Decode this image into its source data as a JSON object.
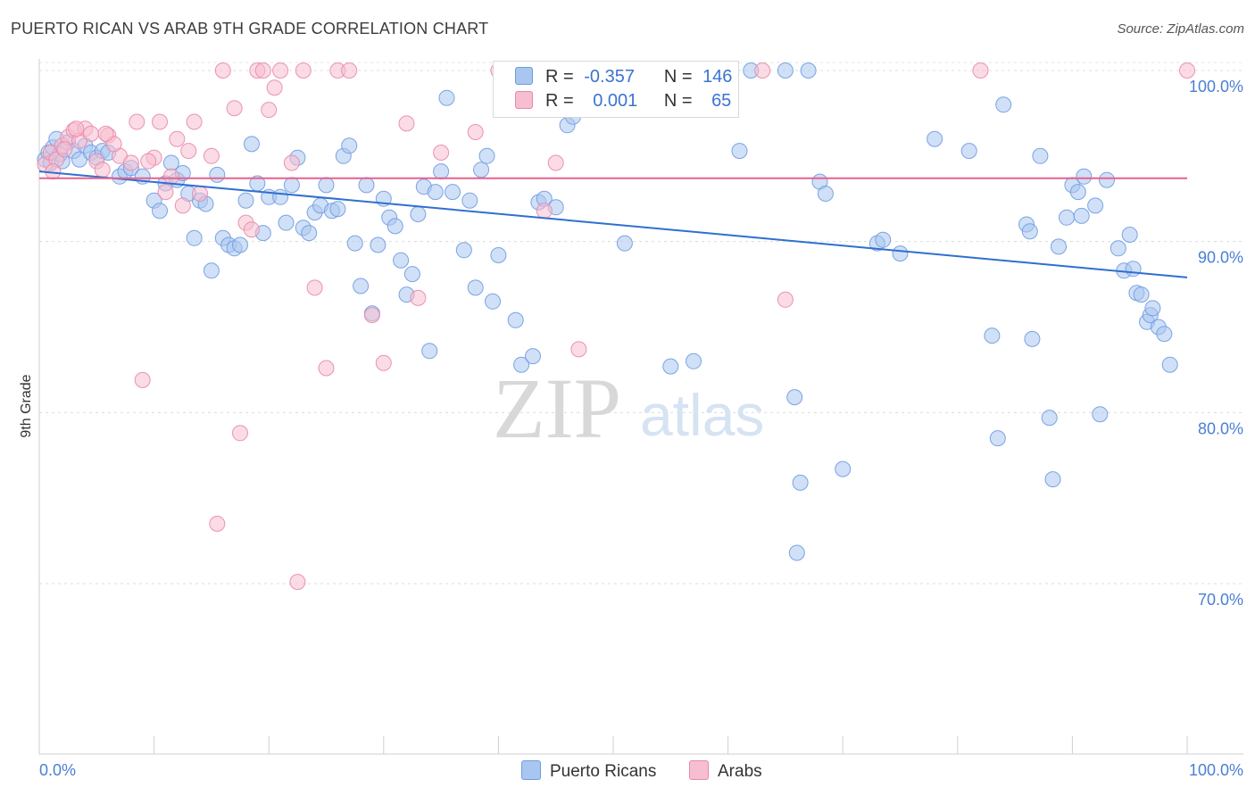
{
  "title": "PUERTO RICAN VS ARAB 9TH GRADE CORRELATION CHART",
  "source": "Source: ZipAtlas.com",
  "watermark": {
    "zip": "ZIP",
    "atlas": "atlas"
  },
  "legend": {
    "rows": [
      {
        "r_label": "R =",
        "r_value": "-0.357",
        "n_label": "N =",
        "n_value": "146",
        "color": "#a9c6f0",
        "border": "#6f9be0"
      },
      {
        "r_label": "R =",
        "r_value": "0.001",
        "n_label": "N =",
        "n_value": "65",
        "color": "#f7bdd0",
        "border": "#e889a8"
      }
    ]
  },
  "bottom_legend": [
    {
      "label": "Puerto Ricans",
      "color": "#a9c6f0",
      "border": "#6f9be0"
    },
    {
      "label": "Arabs",
      "color": "#f7bdd0",
      "border": "#e889a8"
    }
  ],
  "chart_data": {
    "type": "scatter",
    "xlabel": "",
    "ylabel": "9th Grade",
    "xlim": [
      0,
      100
    ],
    "ylim": [
      60,
      102.5
    ],
    "x_tick_labels": [
      {
        "value": 0,
        "label": "0.0%"
      },
      {
        "value": 100,
        "label": "100.0%"
      }
    ],
    "y_tick_labels": [
      {
        "value": 100,
        "label": "100.0%"
      },
      {
        "value": 90,
        "label": "90.0%"
      },
      {
        "value": 80,
        "label": "80.0%"
      },
      {
        "value": 70,
        "label": "70.0%"
      }
    ],
    "grid": true,
    "series": [
      {
        "name": "Puerto Ricans",
        "color": "#a9c6f0",
        "stroke": "#6f9be0",
        "trend": {
          "x": [
            0,
            100
          ],
          "y": [
            94.1,
            87.9
          ],
          "color": "#2f6fd0"
        },
        "points": [
          [
            0.5,
            94.8
          ],
          [
            0.8,
            95.2
          ],
          [
            1,
            94.6
          ],
          [
            1.2,
            95.5
          ],
          [
            1.5,
            96
          ],
          [
            1.8,
            95.1
          ],
          [
            2,
            94.7
          ],
          [
            2.5,
            95.8
          ],
          [
            3,
            95.3
          ],
          [
            3.5,
            94.8
          ],
          [
            4,
            95.6
          ],
          [
            4.5,
            95.2
          ],
          [
            5,
            94.9
          ],
          [
            5.5,
            95.3
          ],
          [
            6,
            95.2
          ],
          [
            7,
            93.8
          ],
          [
            7.5,
            94.1
          ],
          [
            8,
            94.3
          ],
          [
            9,
            93.8
          ],
          [
            10,
            92.4
          ],
          [
            10.5,
            91.8
          ],
          [
            11,
            93.4
          ],
          [
            11.5,
            94.6
          ],
          [
            12,
            93.6
          ],
          [
            12.5,
            94
          ],
          [
            13,
            92.8
          ],
          [
            13.5,
            90.2
          ],
          [
            14,
            92.4
          ],
          [
            14.5,
            92.2
          ],
          [
            15,
            88.3
          ],
          [
            15.5,
            93.9
          ],
          [
            16,
            90.2
          ],
          [
            16.5,
            89.8
          ],
          [
            17,
            89.6
          ],
          [
            17.5,
            89.8
          ],
          [
            18,
            92.4
          ],
          [
            18.5,
            95.7
          ],
          [
            19,
            93.4
          ],
          [
            19.5,
            90.5
          ],
          [
            20,
            92.6
          ],
          [
            21,
            92.6
          ],
          [
            21.5,
            91.1
          ],
          [
            22,
            93.3
          ],
          [
            22.5,
            94.9
          ],
          [
            23,
            90.8
          ],
          [
            23.5,
            90.5
          ],
          [
            24,
            91.7
          ],
          [
            24.5,
            92.1
          ],
          [
            25,
            93.3
          ],
          [
            25.5,
            91.8
          ],
          [
            26,
            91.9
          ],
          [
            26.5,
            95
          ],
          [
            27,
            95.6
          ],
          [
            27.5,
            89.9
          ],
          [
            28,
            87.4
          ],
          [
            28.5,
            93.3
          ],
          [
            29,
            85.8
          ],
          [
            29.5,
            89.8
          ],
          [
            30,
            92.5
          ],
          [
            30.5,
            91.4
          ],
          [
            31,
            90.9
          ],
          [
            31.5,
            88.9
          ],
          [
            32,
            86.9
          ],
          [
            32.5,
            88.1
          ],
          [
            33,
            91.6
          ],
          [
            33.5,
            93.2
          ],
          [
            34,
            83.6
          ],
          [
            34.5,
            92.9
          ],
          [
            35,
            94.1
          ],
          [
            35.5,
            98.4
          ],
          [
            36,
            92.9
          ],
          [
            37,
            89.5
          ],
          [
            37.5,
            92.4
          ],
          [
            38,
            87.3
          ],
          [
            38.5,
            94.2
          ],
          [
            39,
            95
          ],
          [
            39.5,
            86.5
          ],
          [
            40,
            89.2
          ],
          [
            41.5,
            85.4
          ],
          [
            42,
            82.8
          ],
          [
            43,
            83.3
          ],
          [
            43.5,
            92.3
          ],
          [
            44,
            92.5
          ],
          [
            45,
            92
          ],
          [
            46,
            96.8
          ],
          [
            46.5,
            97.3
          ],
          [
            48,
            100
          ],
          [
            51,
            89.9
          ],
          [
            53,
            100
          ],
          [
            55,
            82.7
          ],
          [
            57,
            83
          ],
          [
            61,
            95.3
          ],
          [
            62,
            100
          ],
          [
            65,
            100
          ],
          [
            65.8,
            80.9
          ],
          [
            66,
            71.8
          ],
          [
            66.3,
            75.9
          ],
          [
            67,
            100
          ],
          [
            68,
            93.5
          ],
          [
            68.5,
            92.8
          ],
          [
            70,
            76.7
          ],
          [
            73,
            89.9
          ],
          [
            73.5,
            90.1
          ],
          [
            75,
            89.3
          ],
          [
            78,
            96
          ],
          [
            81,
            95.3
          ],
          [
            83,
            84.5
          ],
          [
            83.5,
            78.5
          ],
          [
            84,
            98
          ],
          [
            86,
            91
          ],
          [
            86.3,
            90.6
          ],
          [
            86.5,
            84.3
          ],
          [
            87.2,
            95
          ],
          [
            88,
            79.7
          ],
          [
            88.3,
            76.1
          ],
          [
            88.8,
            89.7
          ],
          [
            89.5,
            91.4
          ],
          [
            90,
            93.3
          ],
          [
            90.5,
            92.9
          ],
          [
            90.8,
            91.5
          ],
          [
            91,
            93.8
          ],
          [
            92,
            92.1
          ],
          [
            92.4,
            79.9
          ],
          [
            93,
            93.6
          ],
          [
            94,
            89.6
          ],
          [
            94.5,
            88.3
          ],
          [
            95,
            90.4
          ],
          [
            95.3,
            88.4
          ],
          [
            95.6,
            87
          ],
          [
            96,
            86.9
          ],
          [
            96.5,
            85.3
          ],
          [
            96.8,
            85.7
          ],
          [
            97,
            86.1
          ],
          [
            97.5,
            85
          ],
          [
            98,
            84.6
          ],
          [
            98.5,
            82.8
          ],
          [
            50,
            100
          ],
          [
            47,
            100
          ],
          [
            43,
            100
          ]
        ]
      },
      {
        "name": "Arabs",
        "color": "#f7bdd0",
        "stroke": "#e889a8",
        "trend": {
          "x": [
            0,
            100
          ],
          "y": [
            93.7,
            93.7
          ],
          "color": "#e5628e"
        },
        "points": [
          [
            0.5,
            94.5
          ],
          [
            1,
            95.2
          ],
          [
            1.5,
            94.8
          ],
          [
            2,
            95.6
          ],
          [
            2.5,
            96.1
          ],
          [
            3,
            96.5
          ],
          [
            3.5,
            95.9
          ],
          [
            4,
            96.6
          ],
          [
            4.5,
            96.3
          ],
          [
            5,
            94.7
          ],
          [
            5.5,
            94.2
          ],
          [
            6,
            96.2
          ],
          [
            7,
            95
          ],
          [
            8,
            94.6
          ],
          [
            8.5,
            97
          ],
          [
            9,
            81.9
          ],
          [
            10,
            94.9
          ],
          [
            10.5,
            97
          ],
          [
            11,
            92.9
          ],
          [
            11.5,
            93.8
          ],
          [
            12,
            96
          ],
          [
            13,
            95.3
          ],
          [
            13.5,
            97
          ],
          [
            14,
            92.8
          ],
          [
            15,
            95
          ],
          [
            15.5,
            73.5
          ],
          [
            16,
            100
          ],
          [
            17,
            97.8
          ],
          [
            17.5,
            78.8
          ],
          [
            18,
            91.1
          ],
          [
            18.5,
            90.7
          ],
          [
            19,
            100
          ],
          [
            19.5,
            100
          ],
          [
            20,
            97.7
          ],
          [
            20.5,
            99
          ],
          [
            21,
            100
          ],
          [
            22,
            94.6
          ],
          [
            22.5,
            70.1
          ],
          [
            23,
            100
          ],
          [
            24,
            87.3
          ],
          [
            25,
            82.6
          ],
          [
            26,
            100
          ],
          [
            27,
            100
          ],
          [
            29,
            85.7
          ],
          [
            30,
            82.9
          ],
          [
            32,
            96.9
          ],
          [
            33,
            86.7
          ],
          [
            35,
            95.2
          ],
          [
            38,
            96.4
          ],
          [
            40,
            100
          ],
          [
            44,
            91.8
          ],
          [
            45,
            94.6
          ],
          [
            47,
            83.7
          ],
          [
            55,
            100
          ],
          [
            63,
            100
          ],
          [
            65,
            86.6
          ],
          [
            82,
            100
          ],
          [
            100,
            100
          ],
          [
            1.2,
            94.1
          ],
          [
            2.2,
            95.4
          ],
          [
            3.2,
            96.6
          ],
          [
            6.5,
            95.7
          ],
          [
            12.5,
            92.1
          ],
          [
            9.5,
            94.7
          ],
          [
            5.8,
            96.3
          ]
        ]
      }
    ]
  }
}
